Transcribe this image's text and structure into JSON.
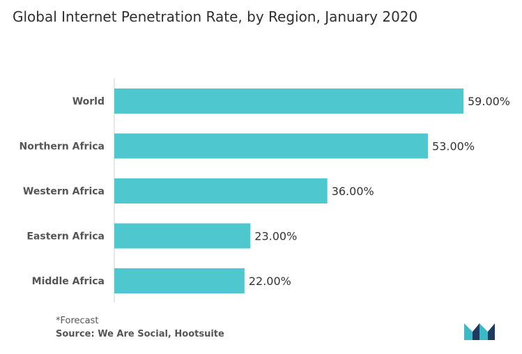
{
  "title": "Global Internet Penetration Rate, by Region, January 2020",
  "footnote": "*Forecast",
  "source": "Source: We Are Social, Hootsuite",
  "colors": {
    "bar": "#4fc7cf",
    "logo_teal": "#3db8c6",
    "logo_navy": "#1f3a5f"
  },
  "chart_data": {
    "type": "bar",
    "orientation": "horizontal",
    "categories": [
      "World",
      "Northern Africa",
      "Western Africa",
      "Eastern Africa",
      "Middle Africa"
    ],
    "values": [
      59.0,
      53.0,
      36.0,
      23.0,
      22.0
    ],
    "value_labels": [
      "59.00%",
      "53.00%",
      "36.00%",
      "23.00%",
      "22.00%"
    ],
    "title": "Global Internet Penetration Rate, by Region, January 2020",
    "xlim": [
      0,
      59
    ],
    "grid": false
  }
}
